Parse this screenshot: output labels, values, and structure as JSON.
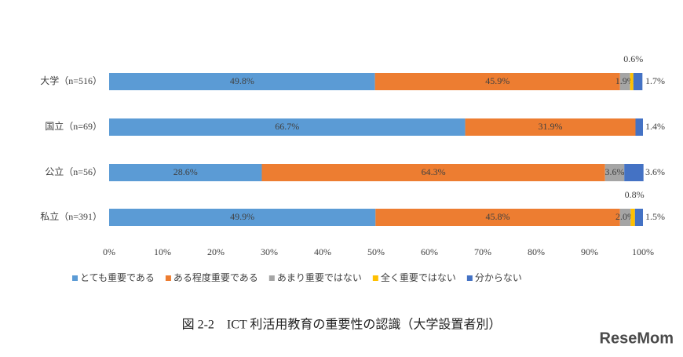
{
  "chart_data": {
    "type": "stacked-bar-horizontal",
    "title": "図 2-2　ICT 利活用教育の重要性の認識（大学設置者別）",
    "watermark": "ReseMom",
    "categories": [
      "大学（n=516）",
      "国立（n=69）",
      "公立（n=56）",
      "私立（n=391）"
    ],
    "series": [
      {
        "name": "とても重要である",
        "color": "#5b9bd5",
        "values": [
          49.8,
          66.7,
          28.6,
          49.9
        ],
        "value_labels": [
          "49.8%",
          "66.7%",
          "28.6%",
          "49.9%"
        ],
        "label_position": "inside"
      },
      {
        "name": "ある程度重要である",
        "color": "#ed7d31",
        "values": [
          45.9,
          31.9,
          64.3,
          45.8
        ],
        "value_labels": [
          "45.9%",
          "31.9%",
          "64.3%",
          "45.8%"
        ],
        "label_position": "inside"
      },
      {
        "name": "あまり重要ではない",
        "color": "#a5a5a5",
        "values": [
          1.9,
          null,
          3.6,
          2.0
        ],
        "value_labels": [
          "1.9%",
          null,
          "3.6%",
          "2.0%"
        ],
        "label_position": "inside"
      },
      {
        "name": "全く重要ではない",
        "color": "#ffc000",
        "values": [
          0.6,
          null,
          null,
          0.8
        ],
        "value_labels": [
          "0.6%",
          null,
          null,
          "0.8%"
        ],
        "label_position": "above"
      },
      {
        "name": "分からない",
        "color": "#4472c4",
        "values": [
          1.7,
          1.4,
          3.6,
          1.5
        ],
        "value_labels": [
          "1.7%",
          "1.4%",
          "3.6%",
          "1.5%"
        ],
        "label_position": "right"
      }
    ],
    "xlim": [
      0,
      100
    ],
    "xticks": [
      {
        "value": 0,
        "label": "0%"
      },
      {
        "value": 10,
        "label": "10%"
      },
      {
        "value": 20,
        "label": "20%"
      },
      {
        "value": 30,
        "label": "30%"
      },
      {
        "value": 40,
        "label": "40%"
      },
      {
        "value": 50,
        "label": "50%"
      },
      {
        "value": 60,
        "label": "60%"
      },
      {
        "value": 70,
        "label": "70%"
      },
      {
        "value": 80,
        "label": "80%"
      },
      {
        "value": 90,
        "label": "90%"
      },
      {
        "value": 100,
        "label": "100%"
      }
    ],
    "grid": false,
    "legend": "bottom"
  }
}
